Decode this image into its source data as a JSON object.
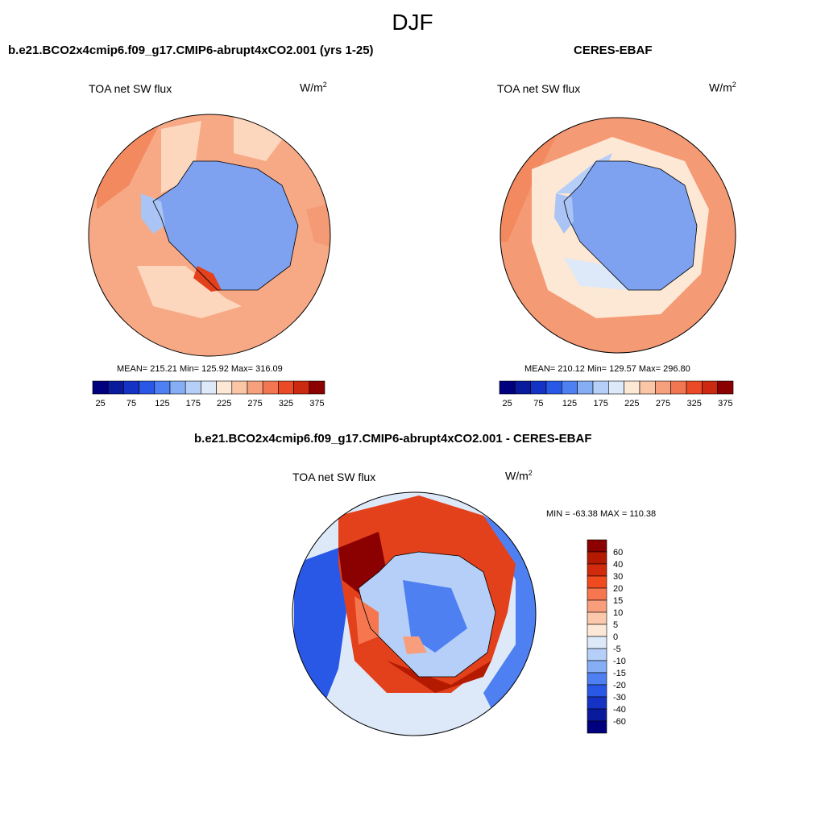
{
  "title": "DJF",
  "panels": [
    {
      "title": "b.e21.BCO2x4cmip6.f09_g17.CMIP6-abrupt4xCO2.001 (yrs 1-25)",
      "variable": "TOA net SW flux",
      "units_base": "W/m",
      "units_exp": "2",
      "stats": "MEAN= 215.21  Min= 125.92  Max= 316.09"
    },
    {
      "title": "CERES-EBAF",
      "variable": "TOA net SW flux",
      "units_base": "W/m",
      "units_exp": "2",
      "stats": "MEAN= 210.12  Min= 129.57  Max= 296.80"
    },
    {
      "title": "b.e21.BCO2x4cmip6.f09_g17.CMIP6-abrupt4xCO2.001 - CERES-EBAF",
      "variable": "TOA net SW flux",
      "units_base": "W/m",
      "units_exp": "2",
      "stats": "MIN = -63.38 MAX = 110.38"
    }
  ],
  "abs_colorbar": {
    "colors": [
      "#00007f",
      "#0a1a9c",
      "#1433c4",
      "#2a58e6",
      "#4f80f2",
      "#86aef5",
      "#b5cff8",
      "#dde9f8",
      "#fde7d5",
      "#fbc6a6",
      "#f6a07e",
      "#f37653",
      "#ea4a26",
      "#cc2a10",
      "#8b0000"
    ],
    "ticks": [
      "25",
      "75",
      "125",
      "175",
      "225",
      "275",
      "325",
      "375"
    ]
  },
  "diff_colorbar": {
    "colors": [
      "#8b0000",
      "#b31a00",
      "#d22a0c",
      "#f04a1f",
      "#f5764f",
      "#f89e7d",
      "#fbc8ab",
      "#fde8d8",
      "#dde9f8",
      "#b5cff8",
      "#86aef5",
      "#4f80f2",
      "#2a58e6",
      "#1433c4",
      "#0a1a9c",
      "#00007f"
    ],
    "ticks": [
      "60",
      "40",
      "30",
      "20",
      "15",
      "10",
      "5",
      "0",
      "-5",
      "-10",
      "-15",
      "-20",
      "-30",
      "-40",
      "-60"
    ]
  },
  "map_colors": {
    "ice": "#7ea2f0",
    "ice_light": "#a9c4f5",
    "ocean_model": "#f7a986",
    "ocean_model_pale": "#fcd7bd",
    "ocean_obs": "#f49a74",
    "ocean_obs_pale": "#fde7d5",
    "diff_pos": "#e3401c",
    "diff_strong": "#8b0000",
    "diff_neg": "#2a58e6",
    "diff_neutral": "#dde9f8"
  }
}
